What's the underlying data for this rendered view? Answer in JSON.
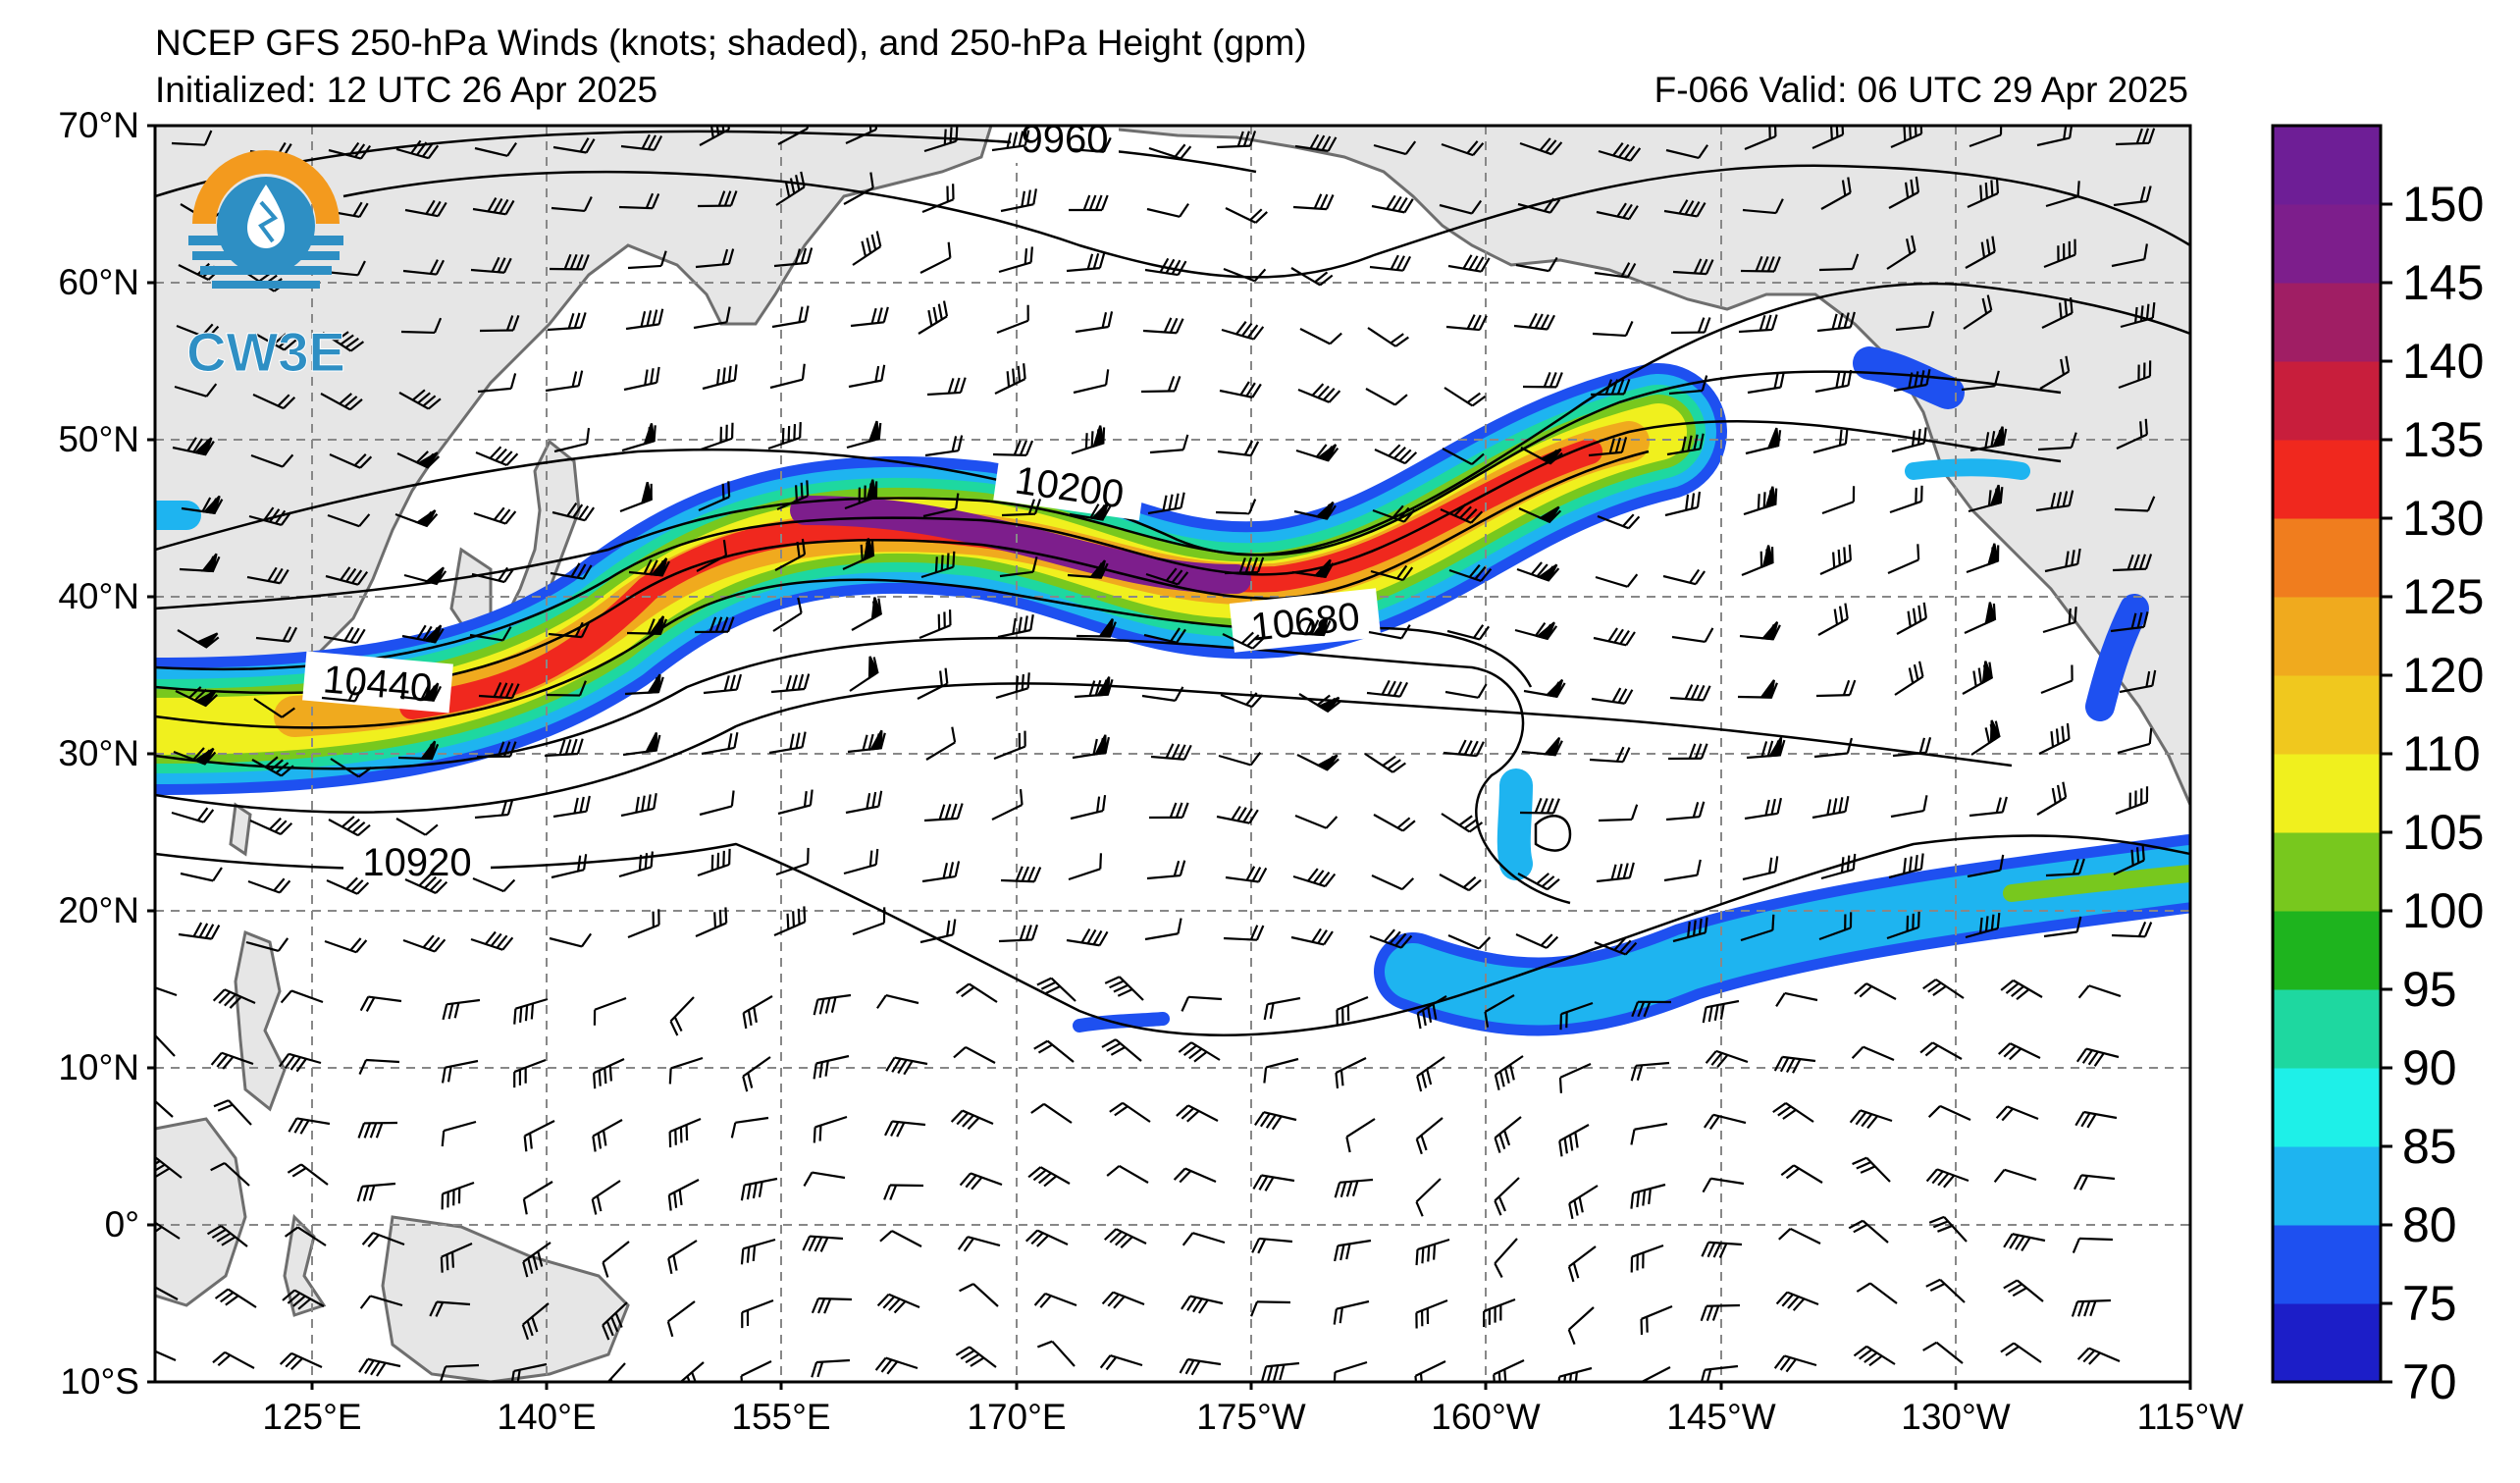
{
  "header": {
    "title": "NCEP GFS 250-hPa Winds (knots; shaded), and 250-hPa Height (gpm)",
    "initialized": "Initialized: 12 UTC 26 Apr 2025",
    "valid": "F-066  Valid: 06 UTC 29 Apr 2025"
  },
  "logo": {
    "text": "CW3E",
    "ring_color": "#f39a1e",
    "blue": "#2e8fc4"
  },
  "map": {
    "lat_range": [
      -10,
      70
    ],
    "lon_range_east": [
      115,
      245
    ],
    "lat_ticks": [
      "70°N",
      "60°N",
      "50°N",
      "40°N",
      "30°N",
      "20°N",
      "10°N",
      "0°",
      "10°S"
    ],
    "lon_ticks": [
      "125°E",
      "140°E",
      "155°E",
      "170°E",
      "175°W",
      "160°W",
      "145°W",
      "130°W",
      "115°W"
    ],
    "land_color": "#e6e6e6",
    "coast_color": "#6e6e6e",
    "grid": "dashed"
  },
  "contour_labels": [
    "9960",
    "10200",
    "10440",
    "10680",
    "10920"
  ],
  "colorbar": {
    "levels": [
      70,
      75,
      80,
      85,
      90,
      95,
      100,
      105,
      110,
      120,
      125,
      130,
      135,
      140,
      145,
      150
    ],
    "tick_labels": [
      "70",
      "75",
      "80",
      "85",
      "90",
      "95",
      "100",
      "105",
      "110",
      "120",
      "125",
      "130",
      "135",
      "140",
      "145",
      "150"
    ],
    "colors": [
      "#1c1ec8",
      "#1e50f0",
      "#1eb4f0",
      "#1ef0e8",
      "#1ed8a0",
      "#1eb41e",
      "#78c81e",
      "#f0f01e",
      "#f0c81e",
      "#f0aa1e",
      "#f07d1e",
      "#f0281e",
      "#c81e3c",
      "#a01e64",
      "#7d1e8c",
      "#6e1e96"
    ]
  }
}
